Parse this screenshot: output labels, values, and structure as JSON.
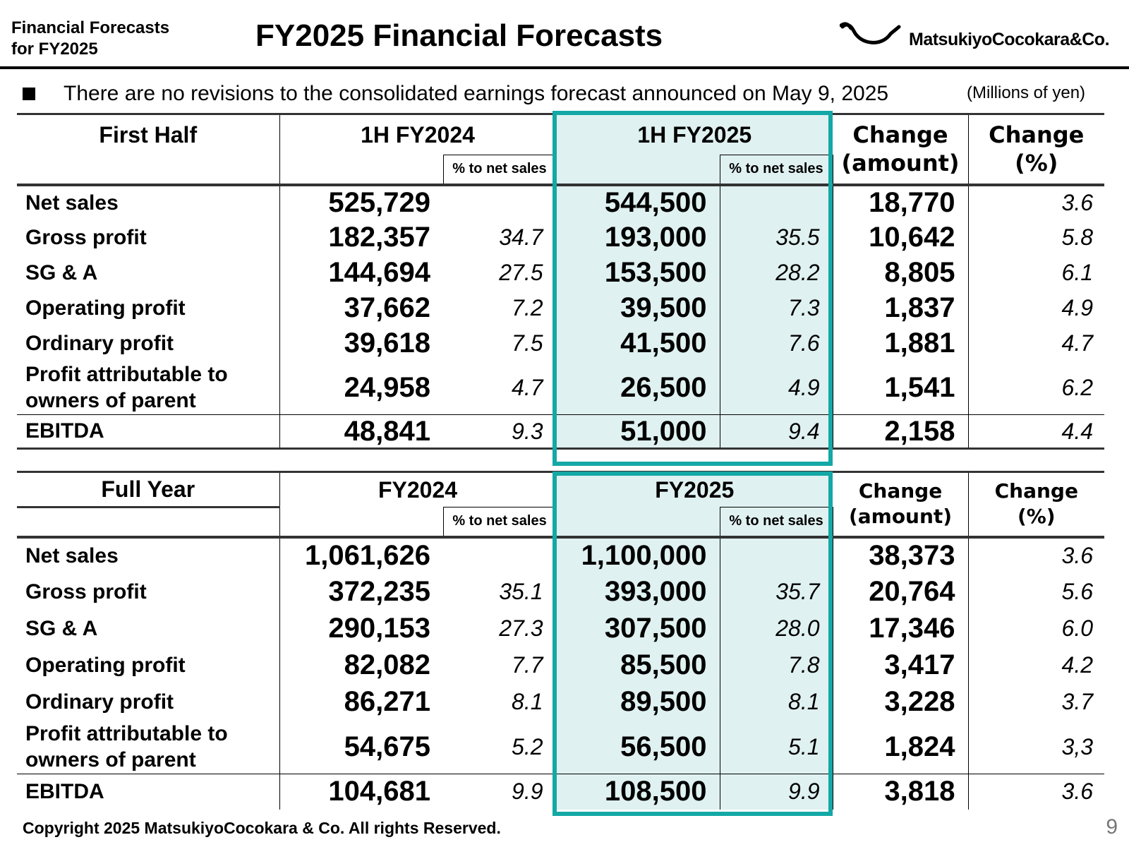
{
  "header": {
    "section_line1": "Financial Forecasts",
    "section_line2": "for FY2025",
    "title": "FY2025 Financial Forecasts",
    "logo_text": "MatsukiyoCocokara&Co."
  },
  "note": "There are no revisions to the consolidated earnings forecast announced on May 9, 2025",
  "unit": "(Millions of yen)",
  "first_half": {
    "label": "First Half",
    "prev_period": "1H FY2024",
    "curr_period": "1H FY2025",
    "pct_label": "% to net sales",
    "change_amount_l1": "Change",
    "change_amount_l2": "(amount)",
    "change_pct_l1": "Change",
    "change_pct_l2": "(%)",
    "rows": [
      {
        "label": "Net sales",
        "prev": "525,729",
        "prev_pct": "",
        "curr": "544,500",
        "curr_pct": "",
        "chg_amt": "18,770",
        "chg_pct": "3.6"
      },
      {
        "label": "Gross profit",
        "prev": "182,357",
        "prev_pct": "34.7",
        "curr": "193,000",
        "curr_pct": "35.5",
        "chg_amt": "10,642",
        "chg_pct": "5.8"
      },
      {
        "label": "SG & A",
        "prev": "144,694",
        "prev_pct": "27.5",
        "curr": "153,500",
        "curr_pct": "28.2",
        "chg_amt": "8,805",
        "chg_pct": "6.1"
      },
      {
        "label": "Operating profit",
        "prev": "37,662",
        "prev_pct": "7.2",
        "curr": "39,500",
        "curr_pct": "7.3",
        "chg_amt": "1,837",
        "chg_pct": "4.9"
      },
      {
        "label": "Ordinary profit",
        "prev": "39,618",
        "prev_pct": "7.5",
        "curr": "41,500",
        "curr_pct": "7.6",
        "chg_amt": "1,881",
        "chg_pct": "4.7"
      },
      {
        "label_l1": "Profit attributable to",
        "label_l2": "owners of parent",
        "prev": "24,958",
        "prev_pct": "4.7",
        "curr": "26,500",
        "curr_pct": "4.9",
        "chg_amt": "1,541",
        "chg_pct": "6.2"
      },
      {
        "label": "EBITDA",
        "prev": "48,841",
        "prev_pct": "9.3",
        "curr": "51,000",
        "curr_pct": "9.4",
        "chg_amt": "2,158",
        "chg_pct": "4.4"
      }
    ]
  },
  "full_year": {
    "label": "Full Year",
    "prev_period": "FY2024",
    "curr_period": "FY2025",
    "pct_label": "% to net sales",
    "change_amount_l1": "Change",
    "change_amount_l2": "(amount)",
    "change_pct_l1": "Change",
    "change_pct_l2": "(%)",
    "rows": [
      {
        "label": "Net sales",
        "prev": "1,061,626",
        "prev_pct": "",
        "curr": "1,100,000",
        "curr_pct": "",
        "chg_amt": "38,373",
        "chg_pct": "3.6"
      },
      {
        "label": "Gross profit",
        "prev": "372,235",
        "prev_pct": "35.1",
        "curr": "393,000",
        "curr_pct": "35.7",
        "chg_amt": "20,764",
        "chg_pct": "5.6"
      },
      {
        "label": "SG & A",
        "prev": "290,153",
        "prev_pct": "27.3",
        "curr": "307,500",
        "curr_pct": "28.0",
        "chg_amt": "17,346",
        "chg_pct": "6.0"
      },
      {
        "label": "Operating profit",
        "prev": "82,082",
        "prev_pct": "7.7",
        "curr": "85,500",
        "curr_pct": "7.8",
        "chg_amt": "3,417",
        "chg_pct": "4.2"
      },
      {
        "label": "Ordinary profit",
        "prev": "86,271",
        "prev_pct": "8.1",
        "curr": "89,500",
        "curr_pct": "8.1",
        "chg_amt": "3,228",
        "chg_pct": "3.7"
      },
      {
        "label_l1": "Profit attributable to",
        "label_l2": "owners of parent",
        "prev": "54,675",
        "prev_pct": "5.2",
        "curr": "56,500",
        "curr_pct": "5.1",
        "chg_amt": "1,824",
        "chg_pct": "3,3"
      },
      {
        "label": "EBITDA",
        "prev": "104,681",
        "prev_pct": "9.9",
        "curr": "108,500",
        "curr_pct": "9.9",
        "chg_amt": "3,818",
        "chg_pct": "3.6"
      }
    ]
  },
  "colors": {
    "highlight_frame": "#14a8a6",
    "highlight_fill": "#dff1f0"
  },
  "footer": "Copyright 2025 MatsukiyoCocokara & Co. All rights Reserved.",
  "page_number": "9"
}
